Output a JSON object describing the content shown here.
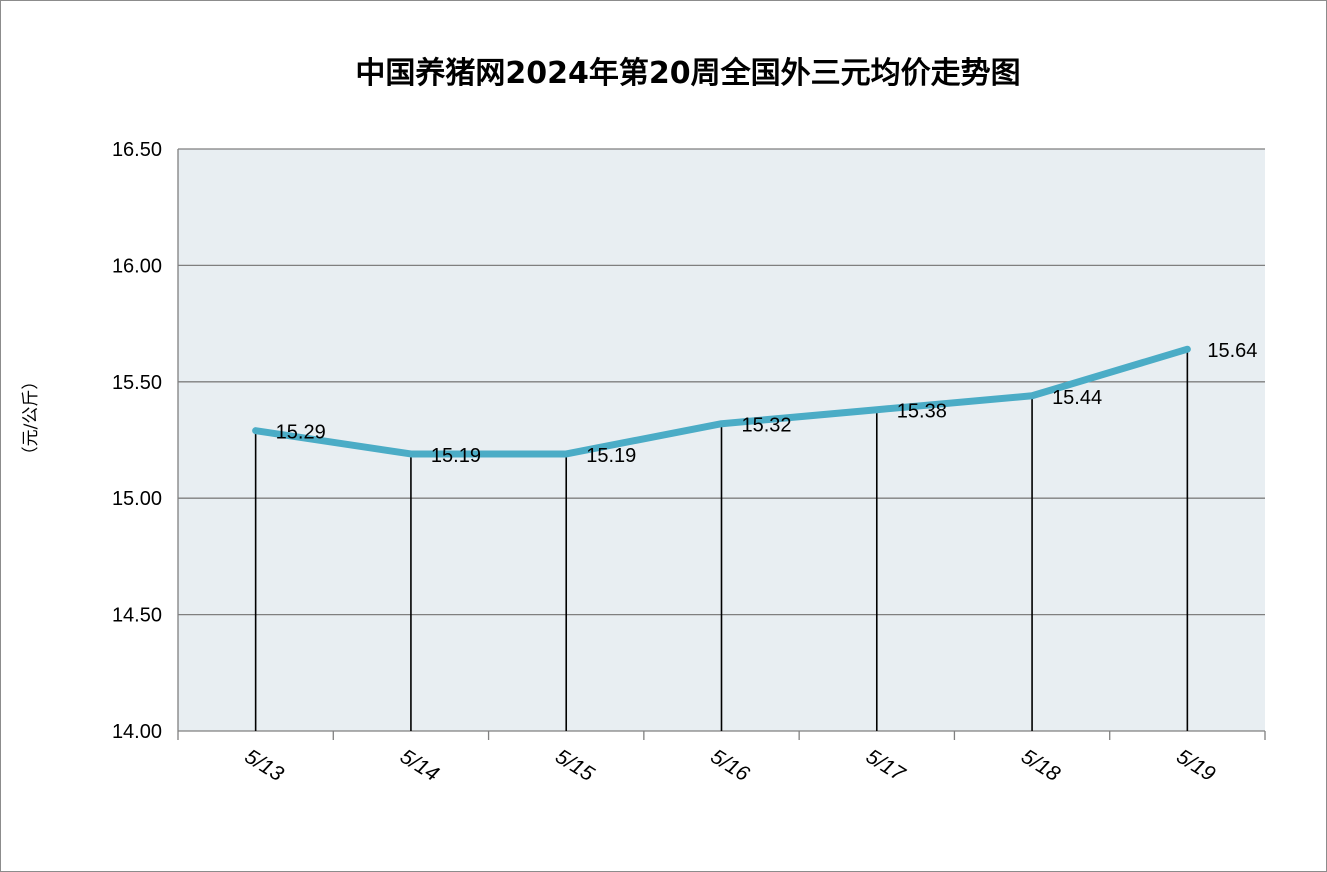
{
  "chart_data": {
    "type": "line",
    "title": "中国养猪网2024年第20周全国外三元均价走势图",
    "ylabel": "（元/公斤）",
    "xlabel": "",
    "categories": [
      "5/13",
      "5/14",
      "5/15",
      "5/16",
      "5/17",
      "5/18",
      "5/19"
    ],
    "series": [
      {
        "values": [
          15.29,
          15.19,
          15.19,
          15.32,
          15.38,
          15.44,
          15.64
        ]
      }
    ],
    "data_labels": [
      "15.29",
      "15.19",
      "15.19",
      "15.32",
      "15.38",
      "15.44",
      "15.64"
    ],
    "ylim": [
      14.0,
      16.5
    ],
    "yticks": [
      14.0,
      14.5,
      15.0,
      15.5,
      16.0,
      16.5
    ],
    "ytick_labels": [
      "14.00",
      "14.50",
      "15.00",
      "15.50",
      "16.00",
      "16.50"
    ],
    "grid": true,
    "drop_lines": true,
    "colors": {
      "line": "#4bacc6",
      "plot_background": "#e8eef2",
      "gridline": "#7f7f7f",
      "drop_line": "#000000"
    }
  }
}
